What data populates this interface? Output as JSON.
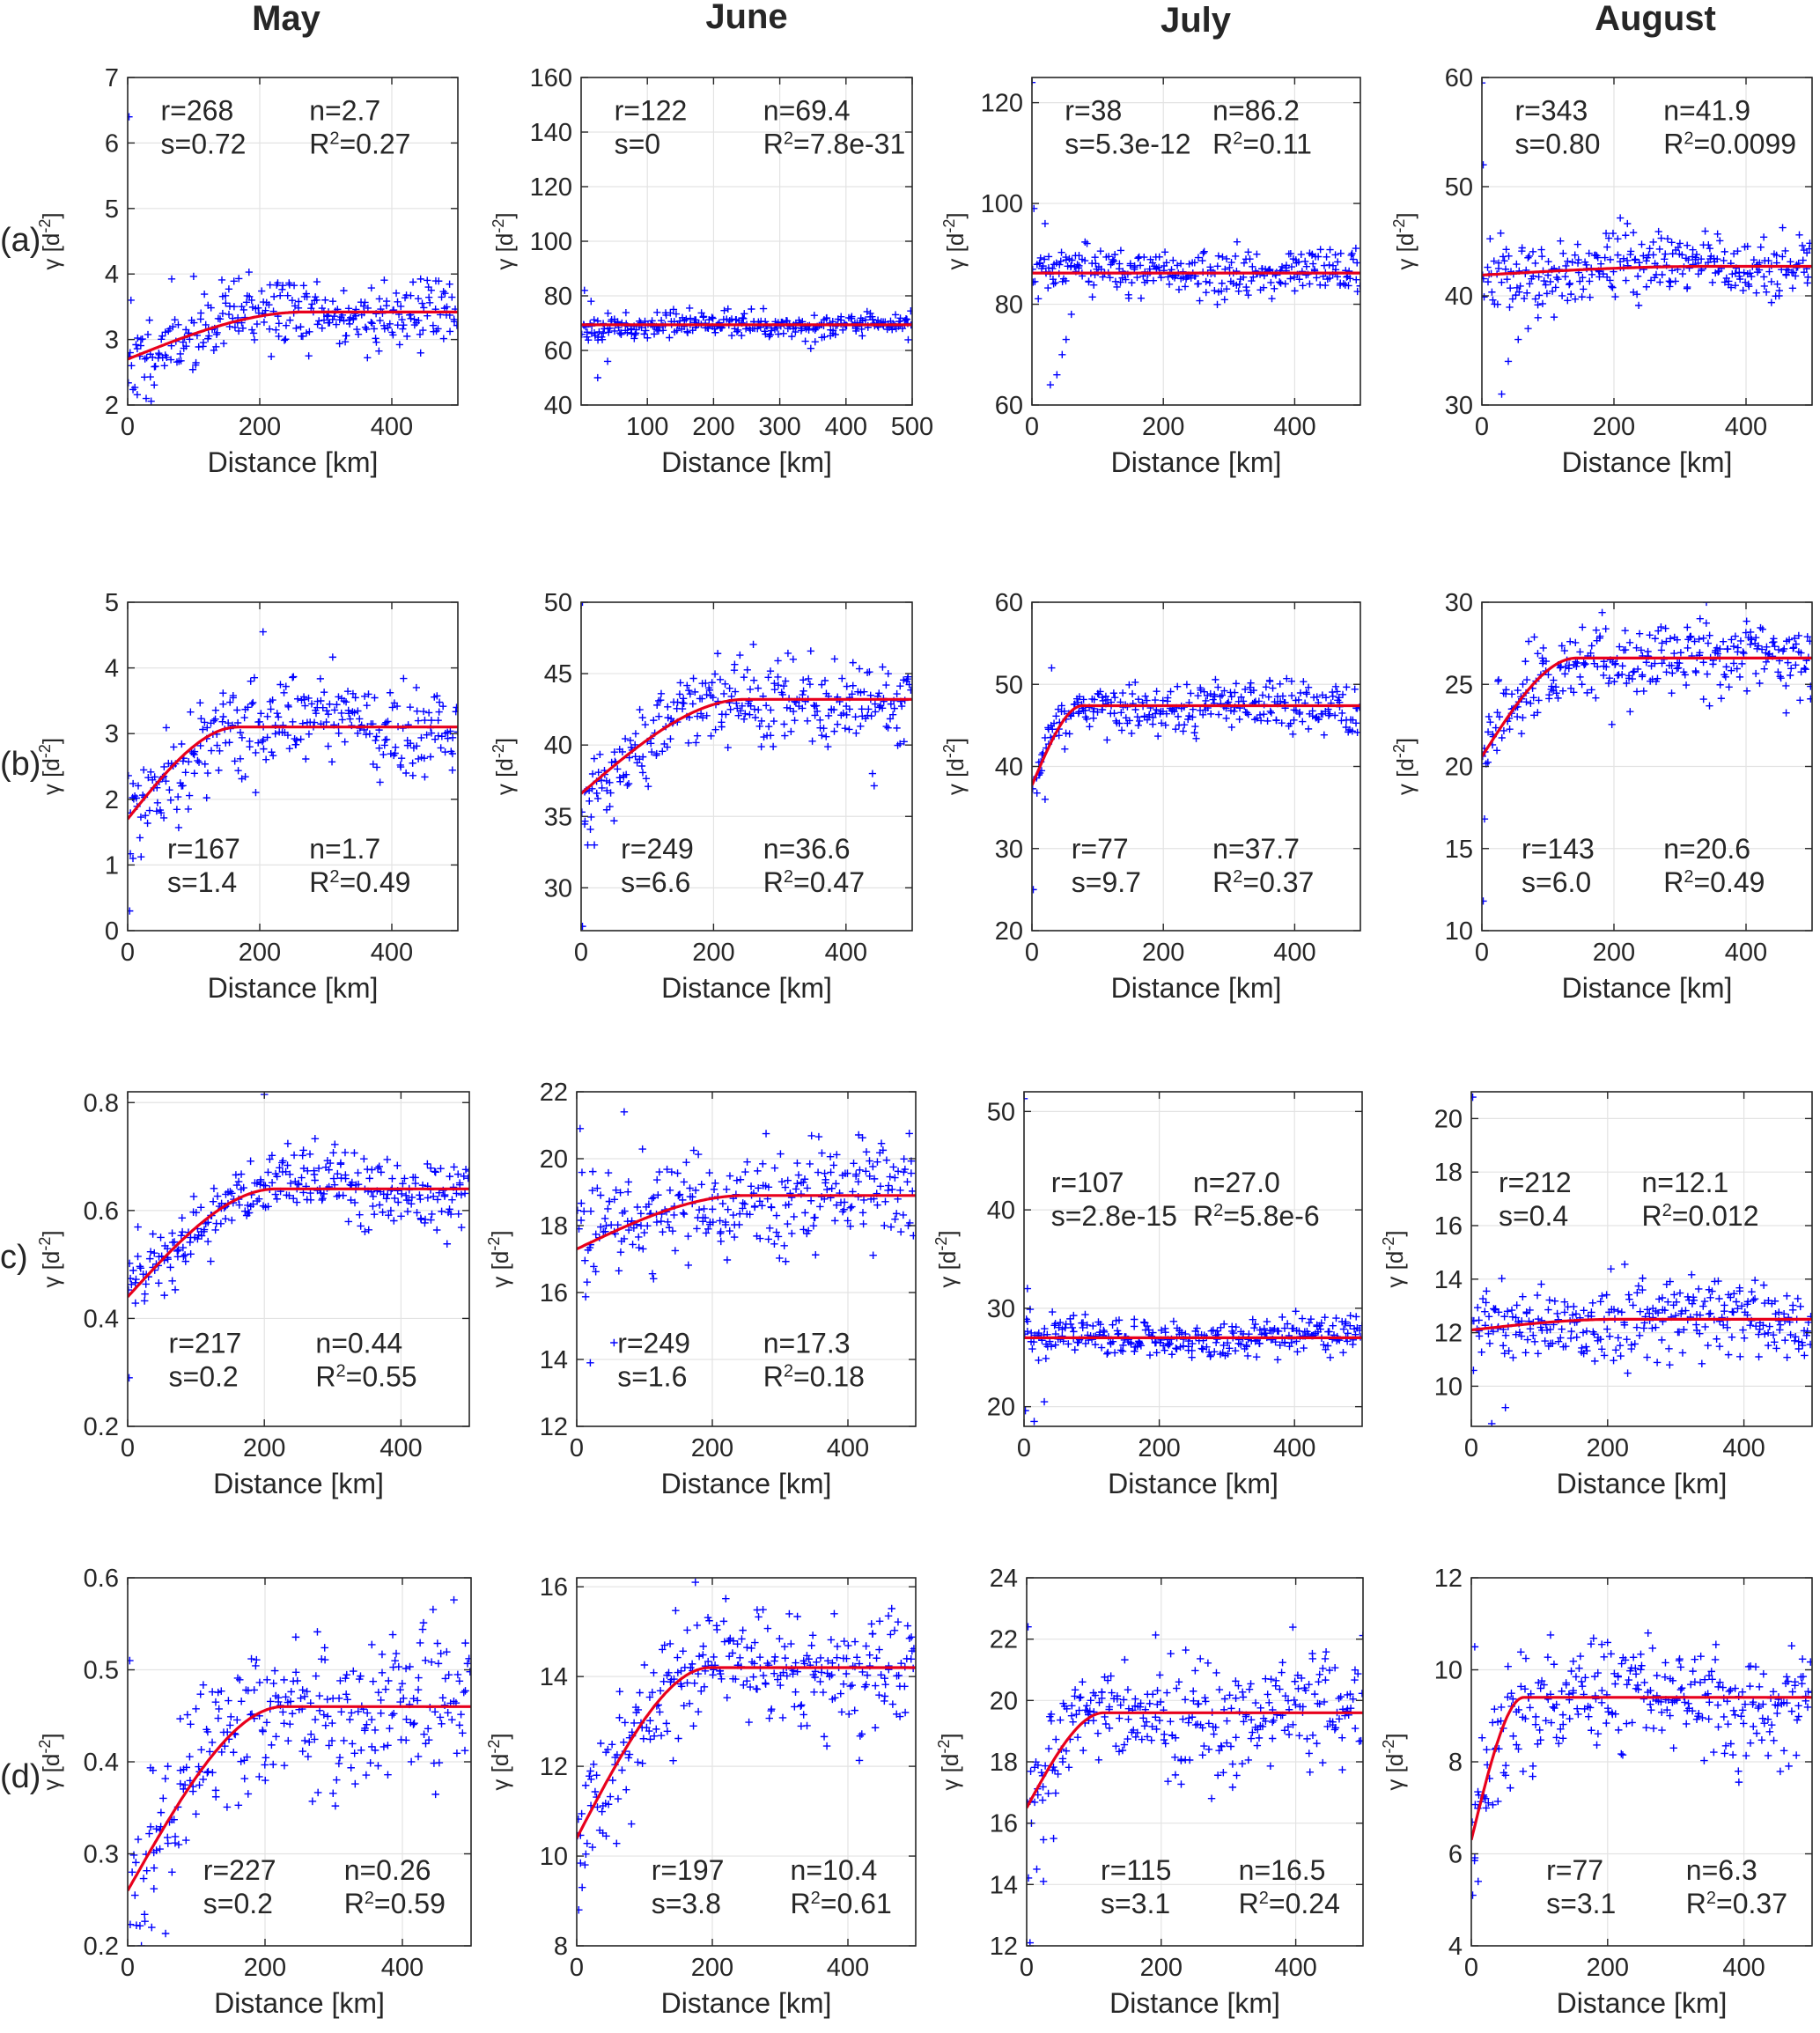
{
  "figure": {
    "columns": [
      "May",
      "June",
      "July",
      "August"
    ],
    "rows": [
      "(a)",
      "(b)",
      "c)",
      "(d)"
    ],
    "xlabel": "Distance [km]",
    "ylabel": "γ [d",
    "ylabel_sup": "-2",
    "ylabel_end": "]",
    "colors": {
      "points": "#0000ff",
      "fit": "#e8001c",
      "text": "#262626",
      "grid": "#e3e3e3"
    }
  },
  "chart_data": [
    {
      "id": "a-may",
      "type": "scatter",
      "row": "(a)",
      "column": "May",
      "xlim": [
        0,
        500
      ],
      "ylim": [
        2,
        7
      ],
      "xticks": [
        0,
        200,
        400
      ],
      "yticks": [
        2,
        3,
        4,
        5,
        6,
        7
      ],
      "fit": {
        "range": 268,
        "sill": 0.72,
        "nugget": 2.7
      },
      "annot": {
        "r": "r=268",
        "s": "s=0.72",
        "n": "n=2.7",
        "R2": "=0.27"
      },
      "annot_pos": "top",
      "series_seed": 11,
      "noise": 0.28,
      "outliers": [
        [
          2,
          6.4
        ],
        [
          5,
          3.6
        ],
        [
          28,
          2.1
        ]
      ]
    },
    {
      "id": "a-june",
      "type": "scatter",
      "row": "(a)",
      "column": "June",
      "xlim": [
        0,
        500
      ],
      "ylim": [
        40,
        160
      ],
      "xticks": [
        100,
        200,
        300,
        400,
        500
      ],
      "yticks": [
        40,
        60,
        80,
        100,
        120,
        140,
        160
      ],
      "fit": {
        "range": 122,
        "sill": 0,
        "nugget": 69.4
      },
      "annot": {
        "r": "r=122",
        "s": "s=0",
        "n": "n=69.4",
        "R2": "=7.8e-31"
      },
      "annot_pos": "top",
      "series_seed": 23,
      "noise": 2.2,
      "outliers": [
        [
          5,
          82
        ],
        [
          25,
          50
        ],
        [
          40,
          56
        ],
        [
          15,
          78
        ]
      ]
    },
    {
      "id": "a-july",
      "type": "scatter",
      "row": "(a)",
      "column": "July",
      "xlim": [
        0,
        500
      ],
      "ylim": [
        60,
        125
      ],
      "xticks": [
        0,
        200,
        400
      ],
      "yticks": [
        60,
        80,
        100,
        120
      ],
      "fit": {
        "range": 38,
        "sill": 5.3e-12,
        "nugget": 86.2
      },
      "annot": {
        "r": "r=38",
        "s": "s=5.3e-12",
        "n": "n=86.2",
        "R2": "=0.11"
      },
      "annot_pos": "top",
      "series_seed": 37,
      "noise": 2.3,
      "outliers": [
        [
          0,
          124
        ],
        [
          3,
          99
        ],
        [
          28,
          64
        ],
        [
          38,
          66
        ],
        [
          46,
          70
        ],
        [
          52,
          73
        ],
        [
          60,
          78
        ],
        [
          20,
          96
        ]
      ]
    },
    {
      "id": "a-august",
      "type": "scatter",
      "row": "(a)",
      "column": "August",
      "xlim": [
        0,
        500
      ],
      "ylim": [
        30,
        60
      ],
      "xticks": [
        0,
        200,
        400
      ],
      "yticks": [
        30,
        40,
        50,
        60
      ],
      "fit": {
        "range": 343,
        "sill": 0.8,
        "nugget": 41.9
      },
      "annot": {
        "r": "r=343",
        "s": "s=0.80",
        "n": "n=41.9",
        "R2": "=0.0099"
      },
      "annot_pos": "top",
      "series_seed": 41,
      "noise": 1.6,
      "outliers": [
        [
          0,
          59.5
        ],
        [
          2,
          52
        ],
        [
          30,
          31
        ],
        [
          40,
          34
        ],
        [
          55,
          36
        ],
        [
          70,
          37
        ],
        [
          85,
          38
        ]
      ]
    },
    {
      "id": "b-may",
      "type": "scatter",
      "row": "(b)",
      "column": "May",
      "xlim": [
        0,
        500
      ],
      "ylim": [
        0,
        5
      ],
      "xticks": [
        0,
        200,
        400
      ],
      "yticks": [
        0,
        1,
        2,
        3,
        4,
        5
      ],
      "fit": {
        "range": 167,
        "sill": 1.4,
        "nugget": 1.7
      },
      "annot": {
        "r": "r=167",
        "s": "s=1.4",
        "n": "n=1.7",
        "R2": "=0.49"
      },
      "annot_pos": "bottom",
      "series_seed": 53,
      "noise": 0.35,
      "outliers": [
        [
          3,
          0.3
        ],
        [
          8,
          1.1
        ],
        [
          205,
          4.55
        ]
      ]
    },
    {
      "id": "b-june",
      "type": "scatter",
      "row": "(b)",
      "column": "June",
      "xlim": [
        0,
        500
      ],
      "ylim": [
        27,
        50
      ],
      "xticks": [
        0,
        200,
        400
      ],
      "yticks": [
        30,
        35,
        40,
        45,
        50
      ],
      "fit": {
        "range": 249,
        "sill": 6.6,
        "nugget": 36.6
      },
      "annot": {
        "r": "r=249",
        "s": "s=6.6",
        "n": "n=36.6",
        "R2": "=0.47"
      },
      "annot_pos": "bottom",
      "series_seed": 61,
      "noise": 1.5,
      "outliers": [
        [
          2,
          50
        ],
        [
          2,
          27.3
        ],
        [
          10,
          33
        ],
        [
          20,
          33
        ],
        [
          440,
          38
        ]
      ]
    },
    {
      "id": "b-july",
      "type": "scatter",
      "row": "(b)",
      "column": "July",
      "xlim": [
        0,
        500
      ],
      "ylim": [
        20,
        60
      ],
      "xticks": [
        0,
        200,
        400
      ],
      "yticks": [
        20,
        30,
        40,
        50,
        60
      ],
      "fit": {
        "range": 77,
        "sill": 9.7,
        "nugget": 37.7
      },
      "annot": {
        "r": "r=77",
        "s": "s=9.7",
        "n": "n=37.7",
        "R2": "=0.37"
      },
      "annot_pos": "bottom",
      "series_seed": 71,
      "noise": 1.5,
      "outliers": [
        [
          2,
          25
        ],
        [
          30,
          52
        ],
        [
          20,
          36
        ]
      ]
    },
    {
      "id": "b-august",
      "type": "scatter",
      "row": "(b)",
      "column": "August",
      "xlim": [
        0,
        500
      ],
      "ylim": [
        10,
        30
      ],
      "xticks": [
        0,
        200,
        400
      ],
      "yticks": [
        10,
        15,
        20,
        25,
        30
      ],
      "fit": {
        "range": 143,
        "sill": 6.0,
        "nugget": 20.6
      },
      "annot": {
        "r": "r=143",
        "s": "s=6.0",
        "n": "n=20.6",
        "R2": "=0.49"
      },
      "annot_pos": "bottom",
      "series_seed": 83,
      "noise": 1.1,
      "outliers": [
        [
          2,
          11.8
        ],
        [
          4,
          16.8
        ],
        [
          60,
          22
        ],
        [
          340,
          30
        ]
      ]
    },
    {
      "id": "c-may",
      "type": "scatter",
      "row": "c)",
      "column": "May",
      "xlim": [
        0,
        500
      ],
      "ylim": [
        0.2,
        0.82
      ],
      "xticks": [
        0,
        200,
        400
      ],
      "yticks": [
        0.2,
        0.4,
        0.6,
        0.8
      ],
      "fit": {
        "range": 217,
        "sill": 0.2,
        "nugget": 0.44
      },
      "annot": {
        "r": "r=217",
        "s": "s=0.2",
        "n": "n=0.44",
        "R2": "=0.55"
      },
      "annot_pos": "bottom",
      "series_seed": 97,
      "noise": 0.035,
      "outliers": [
        [
          2,
          0.29
        ],
        [
          200,
          0.815
        ]
      ]
    },
    {
      "id": "c-june",
      "type": "scatter",
      "row": "c)",
      "column": "June",
      "xlim": [
        0,
        500
      ],
      "ylim": [
        12,
        22
      ],
      "xticks": [
        0,
        200,
        400
      ],
      "yticks": [
        12,
        14,
        16,
        18,
        20,
        22
      ],
      "fit": {
        "range": 249,
        "sill": 1.6,
        "nugget": 17.3
      },
      "annot": {
        "r": "r=249",
        "s": "s=1.6",
        "n": "n=17.3",
        "R2": "=0.18"
      },
      "annot_pos": "bottom",
      "series_seed": 101,
      "noise": 0.8,
      "outliers": [
        [
          20,
          13.9
        ],
        [
          55,
          14.5
        ],
        [
          70,
          21.4
        ],
        [
          5,
          20.9
        ]
      ]
    },
    {
      "id": "c-july",
      "type": "scatter",
      "row": "c)",
      "column": "July",
      "xlim": [
        0,
        500
      ],
      "ylim": [
        18,
        52
      ],
      "xticks": [
        0,
        200,
        400
      ],
      "yticks": [
        20,
        30,
        40,
        50
      ],
      "fit": {
        "range": 107,
        "sill": 2.8e-15,
        "nugget": 27.0
      },
      "annot": {
        "r": "r=107",
        "s": "s=2.8e-15",
        "n": "n=27.0",
        "R2": "=5.8e-6"
      },
      "annot_pos": "mid",
      "series_seed": 113,
      "noise": 1.0,
      "outliers": [
        [
          0,
          51.3
        ],
        [
          2,
          19.6
        ],
        [
          15,
          18.5
        ],
        [
          30,
          20.5
        ],
        [
          5,
          32
        ]
      ]
    },
    {
      "id": "c-august",
      "type": "scatter",
      "row": "c)",
      "column": "August",
      "xlim": [
        0,
        500
      ],
      "ylim": [
        8.5,
        21
      ],
      "xticks": [
        0,
        200,
        400
      ],
      "yticks": [
        10,
        12,
        14,
        16,
        18,
        20
      ],
      "fit": {
        "range": 212,
        "sill": 0.4,
        "nugget": 12.1
      },
      "annot": {
        "r": "r=212",
        "s": "s=0.4",
        "n": "n=12.1",
        "R2": "=0.012"
      },
      "annot_pos": "mid",
      "series_seed": 127,
      "noise": 0.75,
      "outliers": [
        [
          2,
          20.8
        ],
        [
          30,
          8.6
        ],
        [
          50,
          9.2
        ]
      ]
    },
    {
      "id": "d-may",
      "type": "scatter",
      "row": "(d)",
      "column": "May",
      "xlim": [
        0,
        500
      ],
      "ylim": [
        0.2,
        0.6
      ],
      "xticks": [
        0,
        200,
        400
      ],
      "yticks": [
        0.2,
        0.3,
        0.4,
        0.5,
        0.6
      ],
      "fit": {
        "range": 227,
        "sill": 0.2,
        "nugget": 0.26
      },
      "annot": {
        "r": "r=227",
        "s": "s=0.2",
        "n": "n=0.26",
        "R2": "=0.59"
      },
      "annot_pos": "bottom-right",
      "series_seed": 131,
      "noise": 0.04,
      "outliers": [
        [
          3,
          0.51
        ],
        [
          20,
          0.2
        ],
        [
          35,
          0.22
        ]
      ]
    },
    {
      "id": "d-june",
      "type": "scatter",
      "row": "(d)",
      "column": "June",
      "xlim": [
        0,
        500
      ],
      "ylim": [
        8,
        16.2
      ],
      "xticks": [
        0,
        200,
        400
      ],
      "yticks": [
        8,
        10,
        12,
        14,
        16
      ],
      "fit": {
        "range": 197,
        "sill": 3.8,
        "nugget": 10.4
      },
      "annot": {
        "r": "r=197",
        "s": "s=3.8",
        "n": "n=10.4",
        "R2": "=0.61"
      },
      "annot_pos": "bottom-right",
      "series_seed": 149,
      "noise": 0.7,
      "outliers": [
        [
          3,
          8.8
        ],
        [
          8,
          9.3
        ],
        [
          175,
          16.1
        ]
      ]
    },
    {
      "id": "d-july",
      "type": "scatter",
      "row": "(d)",
      "column": "July",
      "xlim": [
        0,
        500
      ],
      "ylim": [
        12,
        24
      ],
      "xticks": [
        0,
        200,
        400
      ],
      "yticks": [
        12,
        14,
        16,
        18,
        20,
        22,
        24
      ],
      "fit": {
        "range": 115,
        "sill": 3.1,
        "nugget": 16.5
      },
      "annot": {
        "r": "r=115",
        "s": "s=3.1",
        "n": "n=16.5",
        "R2": "=0.24"
      },
      "annot_pos": "bottom-right",
      "series_seed": 151,
      "noise": 0.9,
      "outliers": [
        [
          2,
          22.4
        ],
        [
          5,
          12.1
        ],
        [
          15,
          14.5
        ],
        [
          25,
          14.1
        ],
        [
          40,
          15.5
        ]
      ]
    },
    {
      "id": "d-august",
      "type": "scatter",
      "row": "(d)",
      "column": "August",
      "xlim": [
        0,
        500
      ],
      "ylim": [
        4,
        12
      ],
      "xticks": [
        0,
        200,
        400
      ],
      "yticks": [
        4,
        6,
        8,
        10,
        12
      ],
      "fit": {
        "range": 77,
        "sill": 3.1,
        "nugget": 6.3
      },
      "annot": {
        "r": "r=77",
        "s": "s=3.1",
        "n": "n=6.3",
        "R2": "=0.37"
      },
      "annot_pos": "bottom-right",
      "series_seed": 167,
      "noise": 0.65,
      "outliers": [
        [
          2,
          5.1
        ],
        [
          5,
          10.5
        ],
        [
          10,
          5.4
        ]
      ]
    }
  ]
}
